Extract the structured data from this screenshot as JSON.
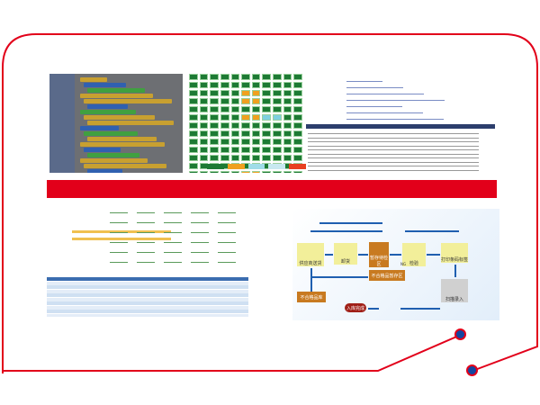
{
  "colors": {
    "frame": "#e2001a",
    "dot": "#1446a0",
    "banner": "#e2001a",
    "grid_ok": "#1d7a34",
    "grid_warn": "#f0a020",
    "grid_info": "#7fd0e0"
  },
  "flowchart": {
    "steps": [
      "供应商送货",
      "卸货",
      "暂存待检区",
      "检验",
      "打印条码标签",
      "扫描录入",
      "入库完成",
      "不合格品暂存区",
      "不合格品库"
    ],
    "ng_label": "NG"
  }
}
